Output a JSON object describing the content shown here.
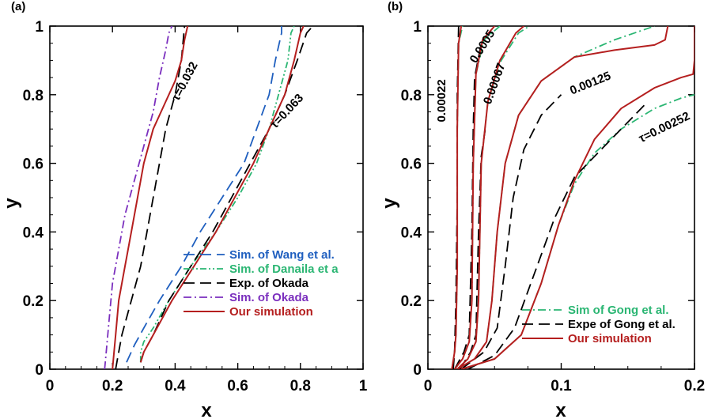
{
  "chart_data": [
    {
      "panel_label": "(a)",
      "type": "line",
      "xlabel": "x",
      "ylabel": "y",
      "xlim": [
        0,
        1
      ],
      "ylim": [
        0,
        1
      ],
      "xticks": [
        "0",
        "0.2",
        "0.4",
        "0.6",
        "0.8",
        "1"
      ],
      "yticks": [
        "0",
        "0.2",
        "0.4",
        "0.6",
        "0.8",
        "1"
      ],
      "legend_placement": "bottom-right",
      "colors": {
        "wang": "#1f5fbf",
        "danaila": "#2bb673",
        "okada_exp": "#000000",
        "okada_sim": "#7b2fbe",
        "ours": "#b51f1f"
      },
      "series": [
        {
          "name": "Sim. of Wang et al.",
          "style": "long-dash",
          "color": "#1f5fbf",
          "x": [
            0.245,
            0.27,
            0.3,
            0.35,
            0.42,
            0.48,
            0.55,
            0.62,
            0.66,
            0.7,
            0.72,
            0.74,
            0.74
          ],
          "y": [
            0.02,
            0.07,
            0.12,
            0.2,
            0.3,
            0.4,
            0.5,
            0.6,
            0.7,
            0.8,
            0.9,
            0.98,
            1.0
          ]
        },
        {
          "name": "Sim. of Danaila et a",
          "style": "dash-dot-dot",
          "color": "#2bb673",
          "x": [
            0.29,
            0.29,
            0.3,
            0.33,
            0.38,
            0.45,
            0.53,
            0.6,
            0.66,
            0.7,
            0.73,
            0.76,
            0.77,
            0.78
          ],
          "y": [
            0.02,
            0.05,
            0.08,
            0.12,
            0.2,
            0.3,
            0.4,
            0.5,
            0.6,
            0.7,
            0.8,
            0.9,
            0.98,
            1.0
          ]
        },
        {
          "name": "Exp. of Okada",
          "style": "long-dash",
          "color": "#000000",
          "x": [
            0.21,
            0.22,
            0.23,
            0.26,
            0.29,
            0.31,
            0.33,
            0.35,
            0.37,
            0.4,
            0.42,
            0.43
          ],
          "y": [
            0.0,
            0.05,
            0.1,
            0.2,
            0.3,
            0.4,
            0.5,
            0.6,
            0.7,
            0.8,
            0.9,
            1.0
          ]
        },
        {
          "name": "Exp. of Okada",
          "style": "long-dash",
          "color": "#000000",
          "x": [
            0.29,
            0.3,
            0.33,
            0.38,
            0.45,
            0.52,
            0.58,
            0.64,
            0.7,
            0.75,
            0.79,
            0.82,
            0.84
          ],
          "y": [
            0.02,
            0.05,
            0.1,
            0.2,
            0.3,
            0.4,
            0.5,
            0.6,
            0.7,
            0.8,
            0.9,
            0.98,
            1.0
          ]
        },
        {
          "name": "Sim. of Okada",
          "style": "dash-dot",
          "color": "#7b2fbe",
          "x": [
            0.175,
            0.18,
            0.19,
            0.2,
            0.22,
            0.24,
            0.27,
            0.3,
            0.33,
            0.35,
            0.37,
            0.38,
            0.39
          ],
          "y": [
            0.0,
            0.05,
            0.15,
            0.25,
            0.35,
            0.45,
            0.55,
            0.65,
            0.75,
            0.85,
            0.93,
            0.98,
            1.0
          ]
        },
        {
          "name": "Our simulation",
          "style": "solid",
          "color": "#b51f1f",
          "x": [
            0.2,
            0.205,
            0.21,
            0.22,
            0.24,
            0.26,
            0.28,
            0.3,
            0.33,
            0.37,
            0.4,
            0.42,
            0.43,
            0.44
          ],
          "y": [
            0.0,
            0.05,
            0.1,
            0.2,
            0.3,
            0.4,
            0.5,
            0.6,
            0.7,
            0.78,
            0.84,
            0.9,
            0.96,
            1.0
          ]
        },
        {
          "name": "Our simulation",
          "style": "solid",
          "color": "#b51f1f",
          "x": [
            0.29,
            0.3,
            0.33,
            0.39,
            0.46,
            0.53,
            0.59,
            0.65,
            0.7,
            0.75,
            0.78,
            0.8,
            0.81
          ],
          "y": [
            0.02,
            0.05,
            0.1,
            0.2,
            0.3,
            0.4,
            0.5,
            0.6,
            0.7,
            0.8,
            0.9,
            0.98,
            1.0
          ]
        }
      ],
      "annotations": [
        {
          "text": "τ=0.032",
          "x": 0.41,
          "y": 0.78,
          "angle": -62
        },
        {
          "text": "τ=0.063",
          "x": 0.72,
          "y": 0.7,
          "angle": -47
        }
      ],
      "legend": [
        "Sim. of Wang et al.",
        "Sim. of Danaila et a",
        "Exp. of Okada",
        "Sim. of Okada",
        "Our simulation"
      ]
    },
    {
      "panel_label": "(b)",
      "type": "line",
      "xlabel": "x",
      "ylabel": "y",
      "xlim": [
        0,
        0.2
      ],
      "ylim": [
        0,
        1
      ],
      "xticks": [
        "0",
        "0.1",
        "0.2"
      ],
      "yticks": [
        "0",
        "0.2",
        "0.4",
        "0.6",
        "0.8",
        "1"
      ],
      "legend_placement": "bottom-right",
      "colors": {
        "gong_sim": "#2bb673",
        "gong_exp": "#000000",
        "ours": "#b51f1f"
      },
      "series": [
        {
          "name": "Sim of Gong et al.",
          "style": "dash-dot",
          "color": "#2bb673",
          "x": [
            0.018,
            0.02,
            0.021,
            0.022,
            0.022,
            0.023,
            0.026
          ],
          "y": [
            0.0,
            0.05,
            0.1,
            0.3,
            0.7,
            0.95,
            1.0
          ]
        },
        {
          "name": "Sim of Gong et al.",
          "style": "dash-dot",
          "color": "#2bb673",
          "x": [
            0.02,
            0.026,
            0.031,
            0.033,
            0.034,
            0.036,
            0.042,
            0.054
          ],
          "y": [
            0.0,
            0.03,
            0.08,
            0.2,
            0.6,
            0.86,
            0.96,
            1.0
          ]
        },
        {
          "name": "Sim of Gong et al.",
          "style": "dash-dot",
          "color": "#2bb673",
          "x": [
            0.022,
            0.03,
            0.036,
            0.038,
            0.04,
            0.045,
            0.055,
            0.068,
            0.076
          ],
          "y": [
            0.0,
            0.03,
            0.08,
            0.2,
            0.6,
            0.78,
            0.9,
            0.98,
            1.0
          ]
        },
        {
          "name": "Sim of Gong et al.",
          "style": "dash-dot",
          "color": "#2bb673",
          "x": [
            0.022,
            0.035,
            0.044,
            0.048,
            0.052,
            0.058,
            0.068,
            0.085,
            0.11,
            0.14,
            0.17
          ],
          "y": [
            0.0,
            0.03,
            0.08,
            0.2,
            0.4,
            0.6,
            0.74,
            0.84,
            0.91,
            0.96,
            1.0
          ]
        },
        {
          "name": "Sim of Gong et al.",
          "style": "dash-dot",
          "color": "#2bb673",
          "x": [
            0.025,
            0.05,
            0.07,
            0.085,
            0.098,
            0.11,
            0.125,
            0.145,
            0.17,
            0.19,
            0.2
          ],
          "y": [
            0.0,
            0.03,
            0.1,
            0.25,
            0.42,
            0.54,
            0.63,
            0.7,
            0.76,
            0.79,
            0.8
          ]
        },
        {
          "name": "Expe of Gong et al.",
          "style": "long-dash",
          "color": "#000000",
          "x": [
            0.019,
            0.02,
            0.021,
            0.022,
            0.022,
            0.023
          ],
          "y": [
            0.0,
            0.05,
            0.2,
            0.5,
            0.8,
            1.0
          ]
        },
        {
          "name": "Expe of Gong et al.",
          "style": "long-dash",
          "color": "#000000",
          "x": [
            0.02,
            0.027,
            0.031,
            0.033,
            0.034,
            0.035,
            0.04
          ],
          "y": [
            0.0,
            0.05,
            0.1,
            0.4,
            0.7,
            0.85,
            0.95
          ]
        },
        {
          "name": "Expe of Gong et al.",
          "style": "long-dash",
          "color": "#000000",
          "x": [
            0.024,
            0.032,
            0.036,
            0.038,
            0.04,
            0.043
          ],
          "y": [
            0.0,
            0.05,
            0.1,
            0.4,
            0.62,
            0.7
          ]
        },
        {
          "name": "Expe of Gong et al.",
          "style": "long-dash",
          "color": "#000000",
          "x": [
            0.025,
            0.042,
            0.052,
            0.058,
            0.064,
            0.072,
            0.085,
            0.1
          ],
          "y": [
            0.0,
            0.05,
            0.12,
            0.3,
            0.5,
            0.64,
            0.74,
            0.8
          ]
        },
        {
          "name": "Expe of Gong et al.",
          "style": "long-dash",
          "color": "#000000",
          "x": [
            0.03,
            0.05,
            0.065,
            0.08,
            0.095,
            0.11,
            0.13,
            0.15,
            0.165
          ],
          "y": [
            0.0,
            0.04,
            0.12,
            0.28,
            0.44,
            0.56,
            0.64,
            0.72,
            0.78
          ]
        },
        {
          "name": "Our simulation",
          "style": "solid",
          "color": "#b51f1f",
          "x": [
            0.018,
            0.02,
            0.021,
            0.022,
            0.022,
            0.023,
            0.025
          ],
          "y": [
            0.0,
            0.05,
            0.1,
            0.3,
            0.7,
            0.95,
            1.0
          ]
        },
        {
          "name": "Our simulation",
          "style": "solid",
          "color": "#b51f1f",
          "x": [
            0.02,
            0.026,
            0.031,
            0.033,
            0.034,
            0.036,
            0.041,
            0.05
          ],
          "y": [
            0.0,
            0.03,
            0.08,
            0.2,
            0.6,
            0.86,
            0.96,
            1.0
          ]
        },
        {
          "name": "Our simulation",
          "style": "solid",
          "color": "#b51f1f",
          "x": [
            0.022,
            0.03,
            0.036,
            0.038,
            0.04,
            0.045,
            0.054,
            0.066,
            0.072
          ],
          "y": [
            0.0,
            0.03,
            0.08,
            0.2,
            0.6,
            0.78,
            0.9,
            0.98,
            1.0
          ]
        },
        {
          "name": "Our simulation",
          "style": "solid",
          "color": "#b51f1f",
          "x": [
            0.022,
            0.035,
            0.044,
            0.048,
            0.052,
            0.058,
            0.068,
            0.085,
            0.11,
            0.14,
            0.17,
            0.178,
            0.179,
            0.18
          ],
          "y": [
            0.0,
            0.03,
            0.08,
            0.2,
            0.4,
            0.6,
            0.74,
            0.84,
            0.91,
            0.93,
            0.945,
            0.96,
            0.98,
            1.0
          ]
        },
        {
          "name": "Our simulation",
          "style": "solid",
          "color": "#b51f1f",
          "x": [
            0.025,
            0.05,
            0.07,
            0.085,
            0.098,
            0.11,
            0.125,
            0.145,
            0.17,
            0.19,
            0.199,
            0.2,
            0.2
          ],
          "y": [
            0.0,
            0.03,
            0.1,
            0.25,
            0.42,
            0.55,
            0.67,
            0.76,
            0.82,
            0.85,
            0.86,
            0.9,
            1.0
          ]
        }
      ],
      "annotations": [
        {
          "text": "0.00022",
          "x": 0.013,
          "y": 0.72,
          "angle": -90
        },
        {
          "text": "0.0005",
          "x": 0.036,
          "y": 0.89,
          "angle": -58
        },
        {
          "text": "0.00067",
          "x": 0.047,
          "y": 0.77,
          "angle": -70
        },
        {
          "text": "0.00125",
          "x": 0.108,
          "y": 0.8,
          "angle": -22
        },
        {
          "text": "τ=0.00252",
          "x": 0.16,
          "y": 0.66,
          "angle": -26
        }
      ],
      "legend": [
        "Sim of Gong et al.",
        "Expe of Gong et al.",
        "Our simulation"
      ]
    }
  ]
}
